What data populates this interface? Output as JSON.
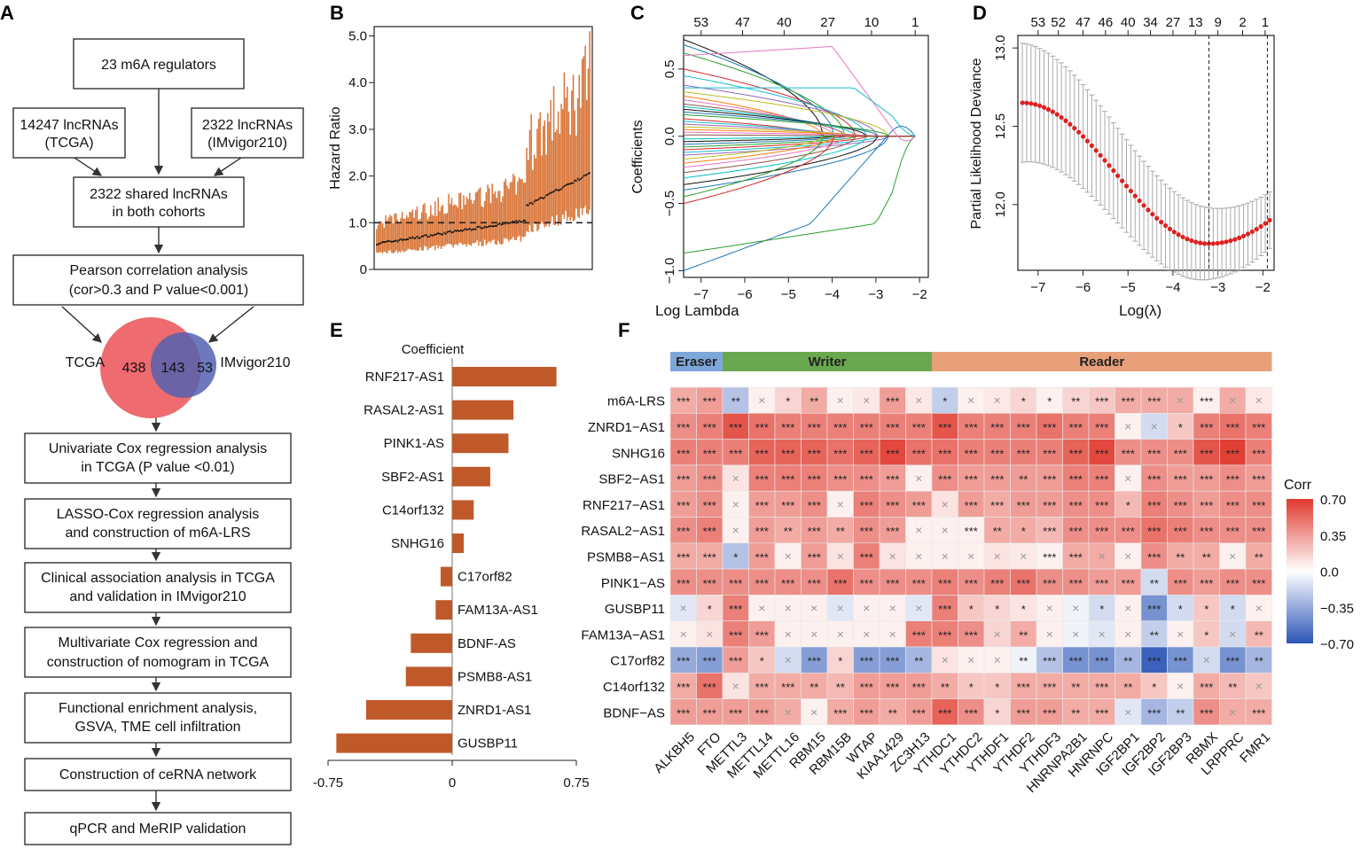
{
  "panel_labels": {
    "a": "A",
    "b": "B",
    "c": "C",
    "d": "D",
    "e": "E",
    "f": "F"
  },
  "flowchart": {
    "box1": "23 m6A regulators",
    "box2": [
      "14247 lncRNAs",
      "(TCGA)"
    ],
    "box3": [
      "2322 lncRNAs",
      "(IMvigor210)"
    ],
    "box4": [
      "2322 shared lncRNAs",
      "in both cohorts"
    ],
    "box5": [
      "Pearson correlation analysis",
      "(cor>0.3 and P value<0.001)"
    ],
    "venn": {
      "left_label": "TCGA",
      "right_label": "IMvigor210",
      "left_only": "438",
      "shared": "143",
      "right_only": "53"
    },
    "box6": [
      "Univariate Cox regression analysis",
      "in TCGA (P value <0.01)"
    ],
    "box7": [
      "LASSO-Cox regression analysis",
      "and construction of m6A-LRS"
    ],
    "box8": [
      "Clinical association analysis in TCGA",
      "and validation in IMvigor210"
    ],
    "box9": [
      "Multivariate Cox regression and",
      "construction of nomogram in TCGA"
    ],
    "box10": [
      "Functional enrichment analysis,",
      "GSVA, TME cell infiltration"
    ],
    "box11": "Construction of ceRNA network",
    "box12": "qPCR and MeRIP validation"
  },
  "chart_data": [
    {
      "type": "forest-sorted",
      "panel": "B",
      "ylabel": "Hazard Ratio",
      "y_ticks": [
        "0",
        "1.0",
        "2.0",
        "3.0",
        "4.0",
        "5.0"
      ],
      "ylim": [
        0,
        5.2
      ],
      "reference_line": 1.0,
      "n_genes": 143,
      "hr_range": [
        0.55,
        2.05
      ],
      "upper_ci_max": 5.1
    },
    {
      "type": "line",
      "panel": "C",
      "xlabel": "Log Lambda",
      "ylabel": "Coefficients",
      "x_ticks": [
        "−7",
        "−6",
        "−5",
        "−4",
        "−3",
        "−2"
      ],
      "y_ticks": [
        "−1.0",
        "−0.5",
        "0.0",
        "0.5"
      ],
      "top_ticks": [
        "53",
        "47",
        "40",
        "27",
        "10",
        "1"
      ],
      "xlim": [
        -7.4,
        -1.8
      ],
      "ylim": [
        -1.05,
        0.75
      ]
    },
    {
      "type": "errorbar",
      "panel": "D",
      "xlabel": "Log(λ)",
      "ylabel": "Partial Likelihood Deviance",
      "x_ticks": [
        "−7",
        "−6",
        "−5",
        "−4",
        "−3",
        "−2"
      ],
      "y_ticks": [
        "12.0",
        "12.5",
        "13.0"
      ],
      "top_ticks": [
        "53",
        "52",
        "47",
        "46",
        "40",
        "34",
        "27",
        "13",
        "9",
        "2",
        "1"
      ],
      "xlim": [
        -7.45,
        -1.75
      ],
      "ylim": [
        11.58,
        13.08
      ],
      "lambda_min": -3.2,
      "lambda_1se": -1.9,
      "curve": {
        "start": 12.65,
        "min": 11.75,
        "end": 11.9
      }
    },
    {
      "type": "bar",
      "panel": "E",
      "title": "Coefficient",
      "x_ticks": [
        "-0.75",
        "0",
        "0.75"
      ],
      "xlim": [
        -0.75,
        0.75
      ],
      "categories": [
        "RNF217-AS1",
        "RASAL2-AS1",
        "PINK1-AS",
        "SBF2-AS1",
        "C14orf132",
        "SNHG16",
        "C17orf82",
        "FAM13A-AS1",
        "BDNF-AS",
        "PSMB8-AS1",
        "ZNRD1-AS1",
        "GUSBP11"
      ],
      "values": [
        0.63,
        0.37,
        0.34,
        0.23,
        0.13,
        0.07,
        -0.07,
        -0.1,
        -0.25,
        -0.28,
        -0.52,
        -0.7
      ]
    },
    {
      "type": "heatmap",
      "panel": "F",
      "groups": [
        {
          "name": "Eraser",
          "span": 2,
          "color": "#7da7d9"
        },
        {
          "name": "Writer",
          "span": 8,
          "color": "#6aa84f"
        },
        {
          "name": "Reader",
          "span": 13,
          "color": "#e8a07a"
        }
      ],
      "columns": [
        "ALKBH5",
        "FTO",
        "METTL3",
        "METTL14",
        "METTL16",
        "RBM15",
        "RBM15B",
        "WTAP",
        "KIAA1429",
        "ZC3H13",
        "YTHDC1",
        "YTHDC2",
        "YTHDF1",
        "YTHDF2",
        "YTHDF3",
        "HNRNPA2B1",
        "HNRNPC",
        "IGF2BP1",
        "IGF2BP2",
        "IGF2BP3",
        "RBMX",
        "LRPPRC",
        "FMR1"
      ],
      "rows": [
        "m6A-LRS",
        "ZNRD1−AS1",
        "SNHG16",
        "SBF2−AS1",
        "RNF217−AS1",
        "RASAL2−AS1",
        "PSMB8−AS1",
        "PINK1−AS",
        "GUSBP11",
        "FAM13A−AS1",
        "C17orf82",
        "C14orf132",
        "BDNF−AS"
      ],
      "values": [
        [
          0.3,
          0.35,
          -0.25,
          0.05,
          0.15,
          0.3,
          0.05,
          0.08,
          0.35,
          0.08,
          -0.2,
          0.05,
          0.08,
          0.15,
          0.05,
          0.15,
          0.2,
          0.3,
          0.3,
          0.3,
          0.05,
          0.3,
          0.08
        ],
        [
          0.4,
          0.45,
          0.6,
          0.5,
          0.45,
          0.45,
          0.45,
          0.45,
          0.45,
          0.45,
          0.6,
          0.45,
          0.45,
          0.45,
          0.5,
          0.45,
          0.45,
          0.05,
          -0.15,
          0.2,
          0.45,
          0.5,
          0.45
        ],
        [
          0.45,
          0.45,
          0.45,
          0.55,
          0.55,
          0.55,
          0.5,
          0.55,
          0.65,
          0.5,
          0.5,
          0.45,
          0.45,
          0.45,
          0.45,
          0.55,
          0.65,
          0.4,
          0.4,
          0.4,
          0.6,
          0.68,
          0.45
        ],
        [
          0.35,
          0.4,
          0.1,
          0.45,
          0.45,
          0.45,
          0.4,
          0.4,
          0.35,
          0.05,
          0.4,
          0.35,
          0.35,
          0.35,
          0.35,
          0.45,
          0.45,
          0.05,
          0.4,
          0.35,
          0.35,
          0.4,
          0.35
        ],
        [
          0.35,
          0.4,
          0.05,
          0.35,
          0.35,
          0.4,
          0.05,
          0.45,
          0.4,
          0.35,
          0.1,
          0.35,
          0.3,
          0.35,
          0.35,
          0.4,
          0.4,
          0.25,
          0.45,
          0.4,
          0.35,
          0.4,
          0.4
        ],
        [
          0.4,
          0.45,
          0.05,
          0.35,
          0.3,
          0.35,
          0.3,
          0.4,
          0.35,
          0.05,
          0.05,
          0.05,
          0.3,
          0.3,
          0.25,
          0.4,
          0.4,
          0.4,
          0.5,
          0.45,
          0.4,
          0.4,
          0.4
        ],
        [
          0.3,
          0.3,
          -0.25,
          0.35,
          0.05,
          0.35,
          0.1,
          0.45,
          0.1,
          0.05,
          0.05,
          0.05,
          0.1,
          0.08,
          0.05,
          0.3,
          0.3,
          0.05,
          0.4,
          0.3,
          0.3,
          0.05,
          0.3
        ],
        [
          0.4,
          0.4,
          0.4,
          0.4,
          0.4,
          0.4,
          0.5,
          0.4,
          0.4,
          0.4,
          0.45,
          0.4,
          0.45,
          0.5,
          0.4,
          0.4,
          0.35,
          0.35,
          -0.15,
          0.4,
          0.35,
          0.4,
          0.4
        ],
        [
          -0.1,
          0.15,
          0.45,
          0.05,
          0.05,
          0.05,
          -0.1,
          0.05,
          0.05,
          -0.1,
          0.45,
          0.2,
          0.15,
          0.1,
          0.05,
          -0.05,
          -0.15,
          0.05,
          -0.45,
          -0.15,
          0.2,
          -0.15,
          0.05
        ],
        [
          0.05,
          0.1,
          0.45,
          0.35,
          0.05,
          0.05,
          0.05,
          0.05,
          0.05,
          0.45,
          0.45,
          0.4,
          0.15,
          0.3,
          0.05,
          -0.05,
          -0.1,
          0.05,
          -0.2,
          0.05,
          0.2,
          -0.15,
          0.25
        ],
        [
          -0.35,
          -0.4,
          0.35,
          0.2,
          -0.15,
          -0.4,
          0.15,
          -0.4,
          -0.4,
          -0.3,
          0.1,
          0.05,
          0.05,
          -0.05,
          -0.25,
          -0.45,
          -0.45,
          -0.3,
          -0.65,
          -0.45,
          -0.15,
          -0.45,
          -0.3
        ],
        [
          0.3,
          0.5,
          0.1,
          0.3,
          0.3,
          0.3,
          0.25,
          0.35,
          0.35,
          0.35,
          0.3,
          0.2,
          0.2,
          0.3,
          0.3,
          0.3,
          0.3,
          0.3,
          0.2,
          0.05,
          0.3,
          0.25,
          0.2
        ],
        [
          0.35,
          0.35,
          0.35,
          0.35,
          0.3,
          0.05,
          0.3,
          0.35,
          0.3,
          0.35,
          0.55,
          0.4,
          0.15,
          0.35,
          0.35,
          0.3,
          0.3,
          -0.1,
          -0.3,
          -0.2,
          0.4,
          0.3,
          0.3
        ]
      ],
      "significance": [
        [
          "***",
          "***",
          "**",
          "x",
          "*",
          "**",
          "x",
          "x",
          "***",
          "x",
          "*",
          "x",
          "x",
          "*",
          "*",
          "**",
          "***",
          "***",
          "***",
          "x",
          "***",
          "x",
          "x"
        ],
        [
          "***",
          "***",
          "***",
          "***",
          "***",
          "***",
          "***",
          "***",
          "***",
          "***",
          "***",
          "***",
          "***",
          "***",
          "***",
          "***",
          "***",
          "x",
          "x",
          "*",
          "***",
          "***",
          "***"
        ],
        [
          "***",
          "***",
          "***",
          "***",
          "***",
          "***",
          "***",
          "***",
          "***",
          "***",
          "***",
          "***",
          "***",
          "***",
          "***",
          "***",
          "***",
          "***",
          "***",
          "***",
          "***",
          "***",
          "***"
        ],
        [
          "***",
          "***",
          "x",
          "***",
          "***",
          "***",
          "***",
          "***",
          "***",
          "x",
          "***",
          "***",
          "***",
          "**",
          "***",
          "***",
          "***",
          "x",
          "***",
          "***",
          "***",
          "***",
          "***"
        ],
        [
          "***",
          "***",
          "x",
          "***",
          "***",
          "***",
          "x",
          "***",
          "***",
          "***",
          "x",
          "***",
          "***",
          "***",
          "***",
          "***",
          "***",
          "*",
          "***",
          "***",
          "***",
          "***",
          "***"
        ],
        [
          "***",
          "***",
          "x",
          "***",
          "**",
          "***",
          "**",
          "***",
          "***",
          "x",
          "x",
          "***",
          "**",
          "*",
          "***",
          "***",
          "***",
          "***",
          "***",
          "***",
          "***",
          "***",
          "***"
        ],
        [
          "***",
          "***",
          "*",
          "***",
          "x",
          "***",
          "x",
          "***",
          "x",
          "x",
          "x",
          "x",
          "x",
          "x",
          "***",
          "***",
          "x",
          "x",
          "***",
          "**",
          "**",
          "x",
          "**"
        ],
        [
          "***",
          "***",
          "***",
          "***",
          "***",
          "***",
          "***",
          "***",
          "***",
          "***",
          "***",
          "***",
          "***",
          "***",
          "***",
          "***",
          "***",
          "***",
          "**",
          "***",
          "***",
          "***",
          "***"
        ],
        [
          "x",
          "*",
          "***",
          "x",
          "x",
          "x",
          "x",
          "x",
          "x",
          "x",
          "***",
          "*",
          "*",
          "*",
          "x",
          "x",
          "*",
          "x",
          "***",
          "*",
          "*",
          "*",
          "x"
        ],
        [
          "x",
          "x",
          "***",
          "***",
          "x",
          "x",
          "x",
          "x",
          "x",
          "***",
          "***",
          "***",
          "x",
          "**",
          "x",
          "x",
          "x",
          "x",
          "**",
          "x",
          "*",
          "x",
          "**"
        ],
        [
          "***",
          "***",
          "***",
          "*",
          "x",
          "***",
          "*",
          "***",
          "***",
          "**",
          "x",
          "x",
          "x",
          "**",
          "***",
          "***",
          "***",
          "**",
          "***",
          "***",
          "x",
          "***",
          "**"
        ],
        [
          "***",
          "***",
          "x",
          "***",
          "***",
          "**",
          "**",
          "***",
          "***",
          "***",
          "**",
          "*",
          "*",
          "***",
          "***",
          "**",
          "***",
          "**",
          "*",
          "x",
          "***",
          "**",
          "x"
        ],
        [
          "***",
          "***",
          "***",
          "***",
          "x",
          "x",
          "***",
          "***",
          "**",
          "***",
          "***",
          "***",
          "*",
          "***",
          "***",
          "**",
          "***",
          "x",
          "***",
          "**",
          "***",
          "x",
          "***"
        ]
      ],
      "legend": {
        "title": "Corr",
        "ticks": [
          "0.70",
          "0.35",
          "0.0",
          "−0.35",
          "−0.70"
        ],
        "range": [
          -0.7,
          0.7
        ]
      }
    }
  ]
}
